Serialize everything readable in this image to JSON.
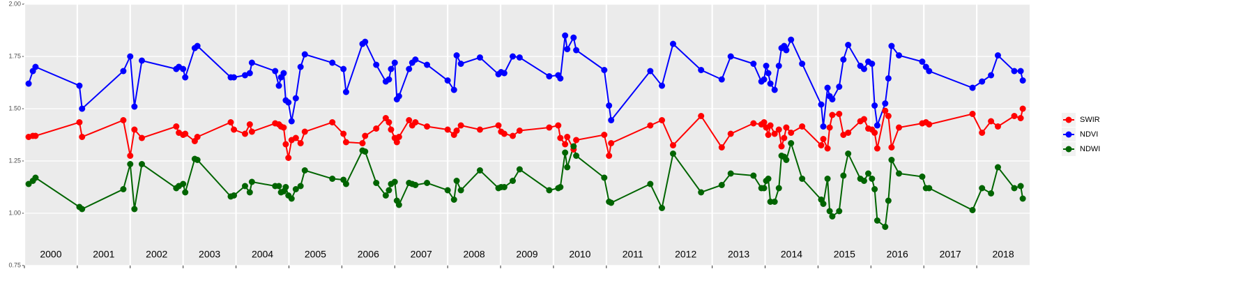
{
  "chart_data": {
    "type": "line",
    "x": [
      2000.08,
      2000.16,
      2000.21,
      2001.04,
      2001.09,
      2001.87,
      2002.0,
      2002.08,
      2002.22,
      2002.87,
      2002.92,
      2003.0,
      2003.04,
      2003.22,
      2003.27,
      2003.9,
      2003.96,
      2004.17,
      2004.26,
      2004.3,
      2004.74,
      2004.81,
      2004.85,
      2004.9,
      2004.94,
      2004.99,
      2005.05,
      2005.13,
      2005.22,
      2005.3,
      2005.82,
      2006.03,
      2006.08,
      2006.39,
      2006.44,
      2006.65,
      2006.83,
      2006.89,
      2006.93,
      2007.0,
      2007.04,
      2007.08,
      2007.27,
      2007.33,
      2007.39,
      2007.61,
      2008.0,
      2008.12,
      2008.17,
      2008.25,
      2008.61,
      2008.96,
      2009.01,
      2009.07,
      2009.23,
      2009.36,
      2009.92,
      2010.09,
      2010.13,
      2010.22,
      2010.26,
      2010.38,
      2010.43,
      2010.96,
      2011.05,
      2011.09,
      2011.83,
      2012.05,
      2012.26,
      2012.79,
      2013.18,
      2013.35,
      2013.78,
      2013.93,
      2013.98,
      2014.02,
      2014.06,
      2014.1,
      2014.18,
      2014.26,
      2014.31,
      2014.36,
      2014.4,
      2014.49,
      2014.7,
      2015.06,
      2015.1,
      2015.18,
      2015.22,
      2015.27,
      2015.4,
      2015.48,
      2015.57,
      2015.8,
      2015.87,
      2015.95,
      2016.02,
      2016.07,
      2016.12,
      2016.27,
      2016.33,
      2016.39,
      2016.53,
      2016.97,
      2017.04,
      2017.1,
      2017.92,
      2018.1,
      2018.27,
      2018.4,
      2018.71,
      2018.83,
      2018.87
    ],
    "series": [
      {
        "name": "SWIR",
        "color": "#ff0000",
        "values": [
          1.365,
          1.37,
          1.37,
          1.435,
          1.365,
          1.445,
          1.275,
          1.4,
          1.36,
          1.415,
          1.385,
          1.375,
          1.38,
          1.345,
          1.365,
          1.435,
          1.4,
          1.38,
          1.425,
          1.39,
          1.43,
          1.425,
          1.415,
          1.41,
          1.33,
          1.265,
          1.35,
          1.36,
          1.335,
          1.39,
          1.435,
          1.38,
          1.34,
          1.335,
          1.37,
          1.405,
          1.455,
          1.435,
          1.4,
          1.36,
          1.34,
          1.365,
          1.445,
          1.42,
          1.435,
          1.415,
          1.4,
          1.375,
          1.395,
          1.42,
          1.4,
          1.42,
          1.39,
          1.38,
          1.37,
          1.395,
          1.41,
          1.42,
          1.36,
          1.33,
          1.365,
          1.305,
          1.35,
          1.375,
          1.275,
          1.335,
          1.42,
          1.445,
          1.325,
          1.465,
          1.315,
          1.38,
          1.43,
          1.425,
          1.435,
          1.41,
          1.375,
          1.42,
          1.38,
          1.4,
          1.32,
          1.36,
          1.41,
          1.385,
          1.415,
          1.325,
          1.355,
          1.31,
          1.41,
          1.47,
          1.475,
          1.375,
          1.385,
          1.44,
          1.45,
          1.405,
          1.4,
          1.385,
          1.31,
          1.49,
          1.465,
          1.315,
          1.41,
          1.43,
          1.435,
          1.425,
          1.475,
          1.385,
          1.44,
          1.415,
          1.465,
          1.455,
          1.5
        ]
      },
      {
        "name": "NDVI",
        "color": "#0000ff",
        "values": [
          1.62,
          1.68,
          1.7,
          1.61,
          1.5,
          1.68,
          1.75,
          1.51,
          1.73,
          1.69,
          1.7,
          1.69,
          1.65,
          1.79,
          1.8,
          1.65,
          1.65,
          1.66,
          1.67,
          1.72,
          1.68,
          1.61,
          1.65,
          1.67,
          1.54,
          1.53,
          1.44,
          1.55,
          1.7,
          1.76,
          1.72,
          1.69,
          1.58,
          1.81,
          1.82,
          1.71,
          1.63,
          1.64,
          1.69,
          1.72,
          1.545,
          1.56,
          1.69,
          1.72,
          1.735,
          1.71,
          1.635,
          1.59,
          1.755,
          1.715,
          1.745,
          1.665,
          1.675,
          1.67,
          1.75,
          1.745,
          1.655,
          1.66,
          1.645,
          1.85,
          1.785,
          1.84,
          1.78,
          1.685,
          1.515,
          1.445,
          1.68,
          1.61,
          1.81,
          1.685,
          1.64,
          1.75,
          1.715,
          1.63,
          1.64,
          1.705,
          1.67,
          1.62,
          1.59,
          1.705,
          1.79,
          1.8,
          1.78,
          1.83,
          1.715,
          1.52,
          1.415,
          1.6,
          1.56,
          1.545,
          1.605,
          1.735,
          1.805,
          1.705,
          1.69,
          1.725,
          1.715,
          1.515,
          1.42,
          1.525,
          1.645,
          1.8,
          1.755,
          1.725,
          1.7,
          1.68,
          1.6,
          1.63,
          1.66,
          1.755,
          1.68,
          1.68,
          1.635
        ]
      },
      {
        "name": "NDWI",
        "color": "#006400",
        "values": [
          1.14,
          1.155,
          1.17,
          1.03,
          1.02,
          1.115,
          1.235,
          1.02,
          1.235,
          1.12,
          1.13,
          1.14,
          1.1,
          1.26,
          1.255,
          1.08,
          1.085,
          1.13,
          1.1,
          1.15,
          1.13,
          1.13,
          1.1,
          1.105,
          1.125,
          1.085,
          1.07,
          1.115,
          1.13,
          1.205,
          1.165,
          1.16,
          1.14,
          1.3,
          1.295,
          1.145,
          1.085,
          1.11,
          1.14,
          1.15,
          1.06,
          1.04,
          1.145,
          1.14,
          1.135,
          1.145,
          1.11,
          1.065,
          1.155,
          1.11,
          1.205,
          1.12,
          1.125,
          1.125,
          1.155,
          1.21,
          1.11,
          1.12,
          1.125,
          1.29,
          1.22,
          1.32,
          1.275,
          1.17,
          1.055,
          1.05,
          1.14,
          1.025,
          1.285,
          1.1,
          1.135,
          1.19,
          1.18,
          1.12,
          1.12,
          1.155,
          1.165,
          1.055,
          1.055,
          1.12,
          1.275,
          1.27,
          1.255,
          1.335,
          1.165,
          1.065,
          1.045,
          1.165,
          1.01,
          0.985,
          1.01,
          1.18,
          1.285,
          1.165,
          1.155,
          1.19,
          1.165,
          1.115,
          0.965,
          0.935,
          1.06,
          1.255,
          1.19,
          1.175,
          1.12,
          1.12,
          1.015,
          1.12,
          1.095,
          1.22,
          1.12,
          1.13,
          1.07
        ]
      }
    ],
    "xlim": [
      2000,
      2019
    ],
    "xticks": [
      {
        "value": 2000,
        "label": "2000"
      },
      {
        "value": 2001,
        "label": "2001"
      },
      {
        "value": 2002,
        "label": "2002"
      },
      {
        "value": 2003,
        "label": "2003"
      },
      {
        "value": 2004,
        "label": "2004"
      },
      {
        "value": 2005,
        "label": "2005"
      },
      {
        "value": 2006,
        "label": "2006"
      },
      {
        "value": 2007,
        "label": "2007"
      },
      {
        "value": 2008,
        "label": "2008"
      },
      {
        "value": 2009,
        "label": "2009"
      },
      {
        "value": 2010,
        "label": "2010"
      },
      {
        "value": 2011,
        "label": "2011"
      },
      {
        "value": 2012,
        "label": "2012"
      },
      {
        "value": 2013,
        "label": "2013"
      },
      {
        "value": 2014,
        "label": "2014"
      },
      {
        "value": 2015,
        "label": "2015"
      },
      {
        "value": 2016,
        "label": "2016"
      },
      {
        "value": 2017,
        "label": "2017"
      },
      {
        "value": 2018,
        "label": "2018"
      }
    ],
    "ylim": [
      0.75,
      2.0
    ],
    "yticks": [
      {
        "value": 0.75,
        "label": "0.75"
      },
      {
        "value": 1,
        "label": "1.00"
      },
      {
        "value": 1.25,
        "label": "1.25"
      },
      {
        "value": 1.5,
        "label": "1.50"
      },
      {
        "value": 1.75,
        "label": "1.75"
      },
      {
        "value": 2,
        "label": "2.00"
      }
    ],
    "grid": true,
    "legend": "right"
  }
}
